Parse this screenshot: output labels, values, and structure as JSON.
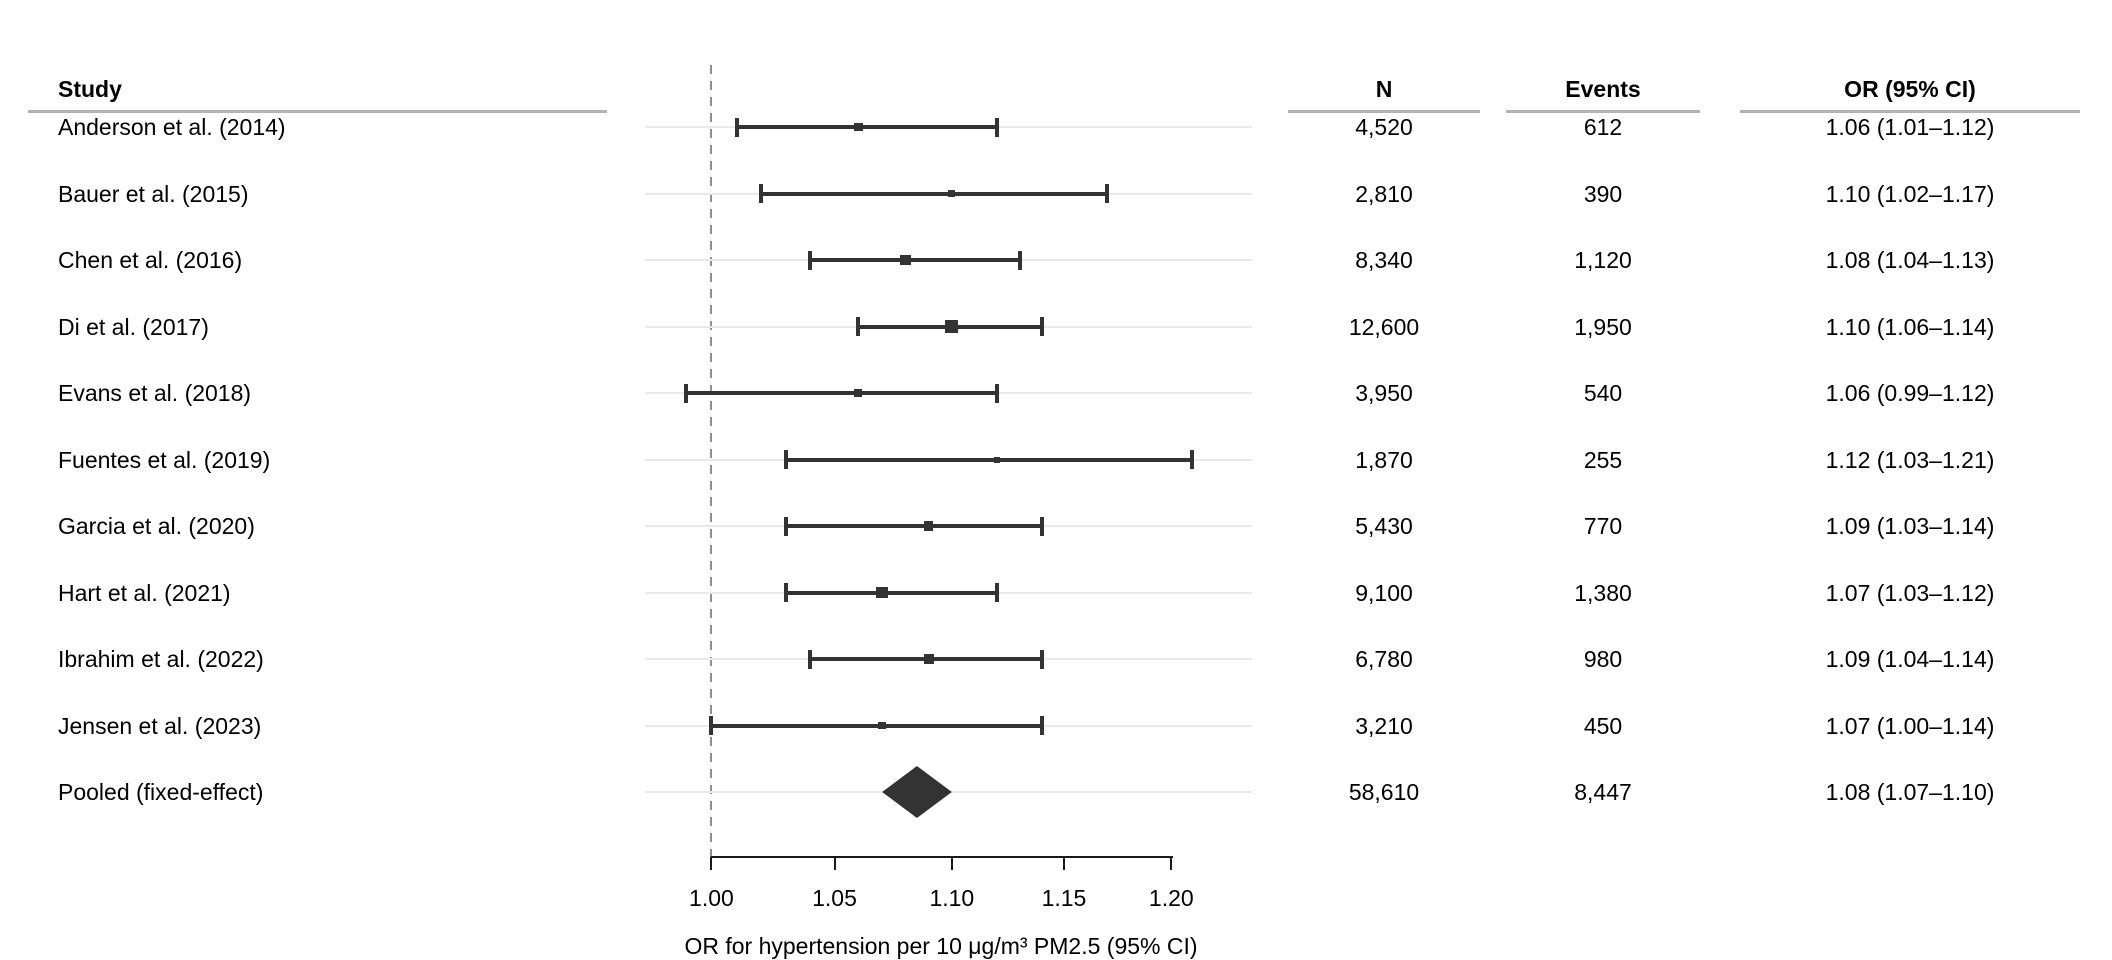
{
  "figure": {
    "columns": {
      "study": "Study",
      "n": "N",
      "events": "Events",
      "or_ci": "OR (95% CI)"
    }
  },
  "chart_data": {
    "type": "scatter",
    "subtype": "forest-plot",
    "title": "",
    "xlabel": "OR for hypertension per 10 μg/m³ PM2.5 (95% CI)",
    "ylabel": "",
    "x_scale": "log",
    "x_ticks": [
      "1.00",
      "1.05",
      "1.10",
      "1.15",
      "1.20"
    ],
    "x_tick_values": [
      1.0,
      1.05,
      1.1,
      1.15,
      1.2
    ],
    "x_domain": [
      0.974,
      1.239
    ],
    "reference_line": 1.0,
    "grid": "horizontal-row-lines",
    "rows": [
      {
        "study": "Anderson et al. (2014)",
        "n": "4,520",
        "n_value": 4520,
        "events": "612",
        "or": 1.06,
        "ci_low": 1.01,
        "ci_high": 1.12,
        "or_ci": "1.06 (1.01–1.12)",
        "marker": "square"
      },
      {
        "study": "Bauer et al. (2015)",
        "n": "2,810",
        "n_value": 2810,
        "events": "390",
        "or": 1.1,
        "ci_low": 1.02,
        "ci_high": 1.17,
        "or_ci": "1.10 (1.02–1.17)",
        "marker": "square"
      },
      {
        "study": "Chen et al. (2016)",
        "n": "8,340",
        "n_value": 8340,
        "events": "1,120",
        "or": 1.08,
        "ci_low": 1.04,
        "ci_high": 1.13,
        "or_ci": "1.08 (1.04–1.13)",
        "marker": "square"
      },
      {
        "study": "Di et al. (2017)",
        "n": "12,600",
        "n_value": 12600,
        "events": "1,950",
        "or": 1.1,
        "ci_low": 1.06,
        "ci_high": 1.14,
        "or_ci": "1.10 (1.06–1.14)",
        "marker": "square"
      },
      {
        "study": "Evans et al. (2018)",
        "n": "3,950",
        "n_value": 3950,
        "events": "540",
        "or": 1.06,
        "ci_low": 0.99,
        "ci_high": 1.12,
        "or_ci": "1.06 (0.99–1.12)",
        "marker": "square"
      },
      {
        "study": "Fuentes et al. (2019)",
        "n": "1,870",
        "n_value": 1870,
        "events": "255",
        "or": 1.12,
        "ci_low": 1.03,
        "ci_high": 1.21,
        "or_ci": "1.12 (1.03–1.21)",
        "marker": "square"
      },
      {
        "study": "Garcia et al. (2020)",
        "n": "5,430",
        "n_value": 5430,
        "events": "770",
        "or": 1.09,
        "ci_low": 1.03,
        "ci_high": 1.14,
        "or_ci": "1.09 (1.03–1.14)",
        "marker": "square"
      },
      {
        "study": "Hart et al. (2021)",
        "n": "9,100",
        "n_value": 9100,
        "events": "1,380",
        "or": 1.07,
        "ci_low": 1.03,
        "ci_high": 1.12,
        "or_ci": "1.07 (1.03–1.12)",
        "marker": "square"
      },
      {
        "study": "Ibrahim et al. (2022)",
        "n": "6,780",
        "n_value": 6780,
        "events": "980",
        "or": 1.09,
        "ci_low": 1.04,
        "ci_high": 1.14,
        "or_ci": "1.09 (1.04–1.14)",
        "marker": "square"
      },
      {
        "study": "Jensen et al. (2023)",
        "n": "3,210",
        "n_value": 3210,
        "events": "450",
        "or": 1.07,
        "ci_low": 1.0,
        "ci_high": 1.14,
        "or_ci": "1.07 (1.00–1.14)",
        "marker": "square"
      },
      {
        "study": "Pooled (fixed-effect)",
        "n": "58,610",
        "n_value": 58610,
        "events": "8,447",
        "or": 1.08,
        "ci_low": 1.07,
        "ci_high": 1.1,
        "or_ci": "1.08 (1.07–1.10)",
        "marker": "diamond"
      }
    ],
    "colors": {
      "estimate": "#333333",
      "grid": "#e9e9e9",
      "reference_line": "#909090",
      "axis": "#1a1a1a",
      "header_rule": "#b3b3b3",
      "text": "#000000"
    },
    "legend_position": "none"
  }
}
